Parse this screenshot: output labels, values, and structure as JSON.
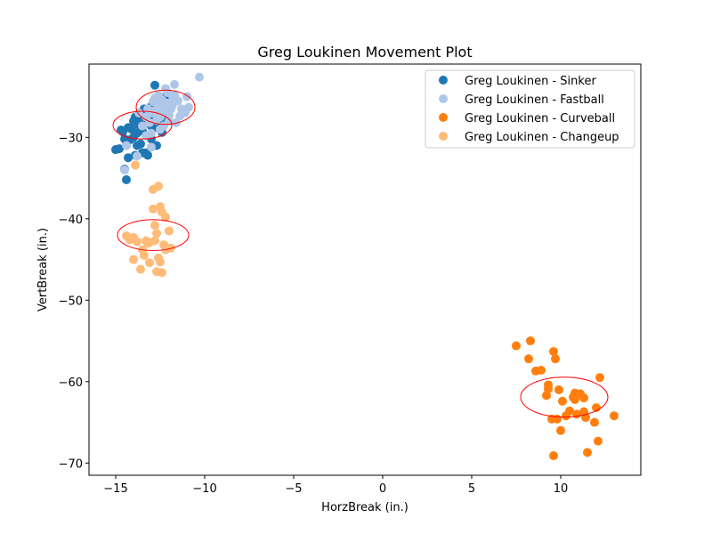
{
  "chart_data": {
    "type": "scatter",
    "title": "Greg Loukinen Movement Plot",
    "xlabel": "HorzBreak (in.)",
    "ylabel": "VertBreak (in.)",
    "xlim": [
      -16.5,
      14.5
    ],
    "ylim": [
      -71.5,
      -21.0
    ],
    "xticks": [
      -15,
      -10,
      -5,
      0,
      5,
      10
    ],
    "xtick_labels": [
      "−15",
      "−10",
      "−5",
      "0",
      "5",
      "10"
    ],
    "yticks": [
      -70,
      -60,
      -50,
      -40,
      -30
    ],
    "ytick_labels": [
      "−70",
      "−60",
      "−50",
      "−40",
      "−30"
    ],
    "grid": false,
    "legend_position": "top-right",
    "series": [
      {
        "name": "Greg Loukinen - Sinker",
        "color": "#1f77b4",
        "points": [
          [
            -15.0,
            -31.5
          ],
          [
            -14.8,
            -31.4
          ],
          [
            -14.6,
            -29.3
          ],
          [
            -14.5,
            -30.2
          ],
          [
            -14.4,
            -31.0
          ],
          [
            -14.3,
            -32.5
          ],
          [
            -14.3,
            -28.8
          ],
          [
            -14.2,
            -30.3
          ],
          [
            -14.1,
            -29.0
          ],
          [
            -14.0,
            -28.0
          ],
          [
            -14.0,
            -30.0
          ],
          [
            -13.9,
            -27.5
          ],
          [
            -13.8,
            -29.5
          ],
          [
            -13.8,
            -31.0
          ],
          [
            -13.7,
            -28.5
          ],
          [
            -13.6,
            -27.8
          ],
          [
            -13.6,
            -30.8
          ],
          [
            -13.5,
            -29.2
          ],
          [
            -13.4,
            -28.3
          ],
          [
            -13.4,
            -26.5
          ],
          [
            -13.3,
            -27.2
          ],
          [
            -13.3,
            -31.9
          ],
          [
            -13.2,
            -29.8
          ],
          [
            -13.1,
            -28.0
          ],
          [
            -13.0,
            -26.2
          ],
          [
            -13.0,
            -30.2
          ],
          [
            -12.9,
            -27.6
          ],
          [
            -12.8,
            -28.8
          ],
          [
            -12.7,
            -27.0
          ],
          [
            -12.7,
            -31.0
          ],
          [
            -12.6,
            -25.5
          ],
          [
            -12.5,
            -28.2
          ],
          [
            -12.4,
            -26.8
          ],
          [
            -12.3,
            -27.5
          ],
          [
            -12.2,
            -25.0
          ],
          [
            -12.8,
            -23.6
          ],
          [
            -13.2,
            -32.2
          ],
          [
            -14.4,
            -35.2
          ],
          [
            -14.5,
            -33.9
          ],
          [
            -13.9,
            -32.2
          ],
          [
            -12.9,
            -31.0
          ],
          [
            -13.5,
            -31.9
          ],
          [
            -14.7,
            -29.1
          ],
          [
            -13.0,
            -28.6
          ],
          [
            -12.4,
            -29.4
          ]
        ]
      },
      {
        "name": "Greg Loukinen - Fastball",
        "color": "#aec7e8",
        "points": [
          [
            -10.3,
            -22.6
          ],
          [
            -11.7,
            -23.5
          ],
          [
            -12.2,
            -24.0
          ],
          [
            -11.0,
            -25.0
          ],
          [
            -10.9,
            -26.3
          ],
          [
            -11.3,
            -26.5
          ],
          [
            -11.5,
            -25.5
          ],
          [
            -11.8,
            -25.0
          ],
          [
            -11.9,
            -26.5
          ],
          [
            -12.0,
            -27.3
          ],
          [
            -12.1,
            -25.8
          ],
          [
            -12.3,
            -26.9
          ],
          [
            -12.4,
            -25.4
          ],
          [
            -12.5,
            -27.5
          ],
          [
            -12.6,
            -26.2
          ],
          [
            -12.7,
            -27.9
          ],
          [
            -12.8,
            -26.7
          ],
          [
            -12.9,
            -25.6
          ],
          [
            -13.0,
            -27.0
          ],
          [
            -13.1,
            -28.2
          ],
          [
            -13.2,
            -26.5
          ],
          [
            -13.3,
            -27.5
          ],
          [
            -13.5,
            -28.6
          ],
          [
            -11.6,
            -28.2
          ],
          [
            -11.1,
            -27.0
          ],
          [
            -12.0,
            -28.0
          ],
          [
            -12.5,
            -29.0
          ],
          [
            -13.0,
            -29.5
          ],
          [
            -13.3,
            -29.8
          ],
          [
            -12.2,
            -26.0
          ],
          [
            -11.7,
            -24.8
          ],
          [
            -12.6,
            -24.8
          ],
          [
            -11.4,
            -27.4
          ],
          [
            -12.8,
            -25.2
          ],
          [
            -13.7,
            -27.0
          ],
          [
            -14.4,
            -31.0
          ],
          [
            -14.5,
            -34.0
          ],
          [
            -13.8,
            -32.3
          ],
          [
            -13.0,
            -31.2
          ],
          [
            -12.3,
            -28.6
          ],
          [
            -11.8,
            -26.0
          ],
          [
            -12.1,
            -24.5
          ],
          [
            -12.4,
            -27.0
          ],
          [
            -12.7,
            -27.3
          ]
        ]
      },
      {
        "name": "Greg Loukinen - Curveball",
        "color": "#ff7f0e",
        "points": [
          [
            7.5,
            -55.6
          ],
          [
            8.2,
            -57.2
          ],
          [
            8.3,
            -55.0
          ],
          [
            8.6,
            -58.7
          ],
          [
            8.9,
            -58.6
          ],
          [
            9.2,
            -61.7
          ],
          [
            9.3,
            -60.4
          ],
          [
            9.3,
            -60.9
          ],
          [
            9.5,
            -64.6
          ],
          [
            9.6,
            -56.3
          ],
          [
            9.6,
            -69.1
          ],
          [
            9.7,
            -57.2
          ],
          [
            9.8,
            -64.6
          ],
          [
            9.9,
            -61.0
          ],
          [
            10.0,
            -66.0
          ],
          [
            10.1,
            -62.4
          ],
          [
            10.3,
            -64.2
          ],
          [
            10.5,
            -63.6
          ],
          [
            10.7,
            -61.9
          ],
          [
            10.8,
            -61.4
          ],
          [
            10.8,
            -62.2
          ],
          [
            10.9,
            -64.0
          ],
          [
            11.1,
            -61.5
          ],
          [
            11.3,
            -62.0
          ],
          [
            11.3,
            -63.7
          ],
          [
            11.4,
            -64.4
          ],
          [
            11.5,
            -68.7
          ],
          [
            11.9,
            -65.0
          ],
          [
            12.0,
            -63.2
          ],
          [
            12.1,
            -67.3
          ],
          [
            12.2,
            -59.5
          ],
          [
            13.0,
            -64.2
          ]
        ]
      },
      {
        "name": "Greg Loukinen - Changeup",
        "color": "#ffbb78",
        "points": [
          [
            -12.6,
            -36.0
          ],
          [
            -12.9,
            -36.4
          ],
          [
            -12.5,
            -38.5
          ],
          [
            -12.9,
            -38.8
          ],
          [
            -12.4,
            -39.2
          ],
          [
            -12.2,
            -39.8
          ],
          [
            -12.8,
            -40.8
          ],
          [
            -12.0,
            -41.5
          ],
          [
            -14.4,
            -42.1
          ],
          [
            -14.2,
            -42.6
          ],
          [
            -14.0,
            -42.3
          ],
          [
            -13.8,
            -42.8
          ],
          [
            -13.3,
            -42.7
          ],
          [
            -13.1,
            -42.9
          ],
          [
            -12.8,
            -42.7
          ],
          [
            -12.3,
            -43.2
          ],
          [
            -12.2,
            -43.8
          ],
          [
            -11.9,
            -43.6
          ],
          [
            -13.5,
            -43.8
          ],
          [
            -13.4,
            -44.5
          ],
          [
            -14.0,
            -45.0
          ],
          [
            -13.1,
            -45.4
          ],
          [
            -12.6,
            -44.8
          ],
          [
            -12.5,
            -45.3
          ],
          [
            -13.6,
            -46.2
          ],
          [
            -12.7,
            -46.5
          ],
          [
            -12.4,
            -46.6
          ],
          [
            -13.9,
            -33.4
          ],
          [
            -12.7,
            -41.8
          ],
          [
            -13.2,
            -43.0
          ]
        ]
      }
    ],
    "ellipses": [
      {
        "center": [
          -13.5,
          -28.5
        ],
        "width": 3.3,
        "height": 3.4,
        "color": "#ff0000"
      },
      {
        "center": [
          -12.2,
          -26.3
        ],
        "width": 3.3,
        "height": 4.2,
        "color": "#ff0000"
      },
      {
        "center": [
          10.2,
          -61.9
        ],
        "width": 4.9,
        "height": 4.9,
        "color": "#ff0000"
      },
      {
        "center": [
          -12.9,
          -42.0
        ],
        "width": 4.0,
        "height": 3.8,
        "color": "#ff0000"
      }
    ]
  }
}
